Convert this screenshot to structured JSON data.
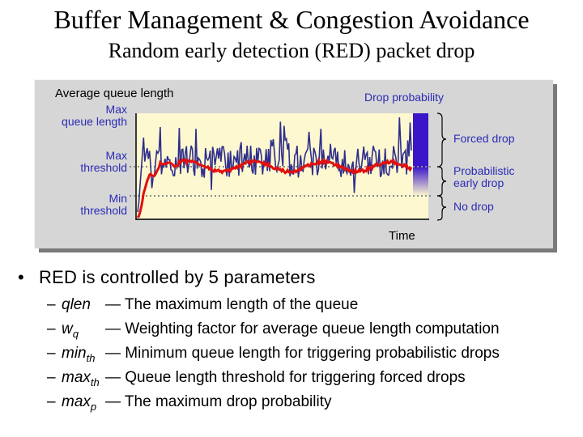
{
  "title": "Buffer Management & Congestion Avoidance",
  "subtitle": "Random early detection (RED) packet drop",
  "diagram": {
    "avg_queue_label": "Average queue length",
    "drop_prob_label": "Drop probability",
    "max_queue_label_1": "Max",
    "max_queue_label_2": "queue length",
    "max_threshold_label_1": "Max",
    "max_threshold_label_2": "threshold",
    "min_threshold_label_1": "Min",
    "min_threshold_label_2": "threshold",
    "forced_drop_label": "Forced drop",
    "prob_early_drop_label_1": "Probabilistic",
    "prob_early_drop_label_2": "early drop",
    "no_drop_label": "No drop",
    "time_label": "Time",
    "colors": {
      "plot_bg": "#fdf8d0",
      "queue_line": "#2e2e8c",
      "average_line": "#e01010",
      "forced_drop_bar": "#3a16c8"
    }
  },
  "bullet": {
    "text": "RED is controlled by 5 parameters"
  },
  "params": [
    {
      "dash": "–",
      "name": "qlen",
      "sub": "",
      "desc": "— The maximum length of the queue"
    },
    {
      "dash": "–",
      "name": "w",
      "sub": "q",
      "desc": "— Weighting factor for average queue length computation"
    },
    {
      "dash": "–",
      "name": "min",
      "sub": "th",
      "desc": "— Minimum queue length for triggering probabilistic drops"
    },
    {
      "dash": "–",
      "name": "max",
      "sub": "th",
      "desc": "— Queue length threshold for triggering forced drops"
    },
    {
      "dash": "–",
      "name": "max",
      "sub": "p",
      "desc": "— The maximum drop probability"
    }
  ]
}
